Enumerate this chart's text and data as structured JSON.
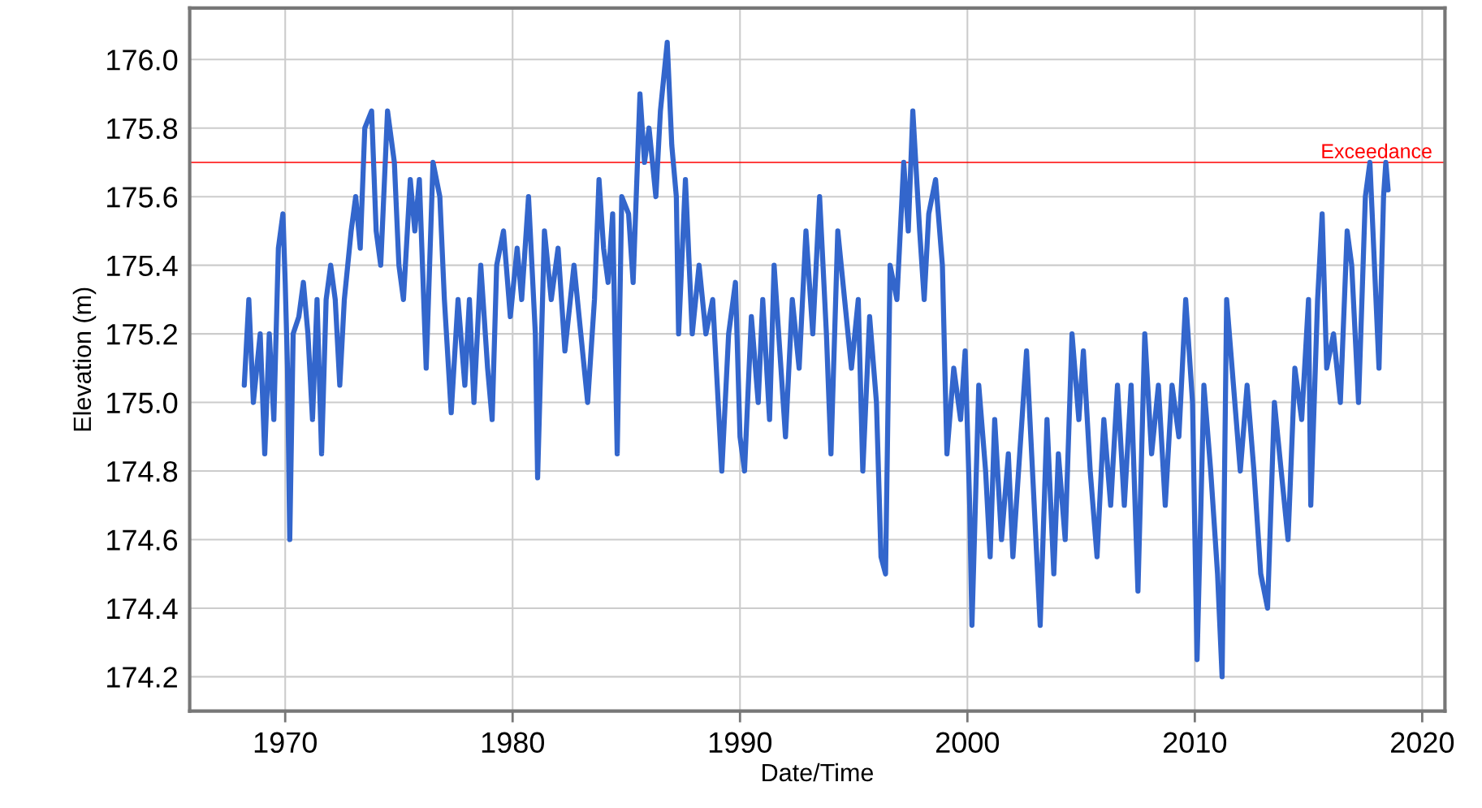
{
  "chart_data": {
    "type": "line",
    "xlabel": "Date/Time",
    "ylabel": "Elevation (m)",
    "xlim": [
      1965.8,
      2021.0
    ],
    "xticks": [
      1970,
      1980,
      1990,
      2000,
      2010,
      2020
    ],
    "ylim": [
      174.1,
      176.15
    ],
    "yticks": [
      {
        "value": 174.2,
        "label": "174.2"
      },
      {
        "value": 174.4,
        "label": "174.4"
      },
      {
        "value": 174.6,
        "label": "174.6"
      },
      {
        "value": 174.8,
        "label": "174.8"
      },
      {
        "value": 175.0,
        "label": "175.0"
      },
      {
        "value": 175.2,
        "label": "175.2"
      },
      {
        "value": 175.4,
        "label": "175.4"
      },
      {
        "value": 175.6,
        "label": "175.6"
      },
      {
        "value": 175.8,
        "label": "175.8"
      },
      {
        "value": 176.0,
        "label": "176.0"
      }
    ],
    "grid": true,
    "legend": false,
    "marker": "none",
    "line_style": "solid",
    "ref_lines": [
      {
        "axis": "y",
        "value": 175.7,
        "label": "Exceedance",
        "color": "#ff0000",
        "line_style": "solid"
      }
    ],
    "series": [
      {
        "color": "#3366cc",
        "x": [
          1968.2,
          1968.4,
          1968.6,
          1968.9,
          1969.1,
          1969.3,
          1969.5,
          1969.7,
          1969.9,
          1970.0,
          1970.1,
          1970.2,
          1970.35,
          1970.6,
          1970.8,
          1971.0,
          1971.2,
          1971.4,
          1971.6,
          1971.8,
          1972.0,
          1972.2,
          1972.4,
          1972.6,
          1972.9,
          1973.1,
          1973.3,
          1973.5,
          1973.8,
          1974.0,
          1974.2,
          1974.5,
          1974.8,
          1975.0,
          1975.2,
          1975.5,
          1975.7,
          1975.9,
          1976.2,
          1976.5,
          1976.8,
          1977.0,
          1977.3,
          1977.6,
          1977.9,
          1978.1,
          1978.3,
          1978.6,
          1978.9,
          1979.1,
          1979.3,
          1979.6,
          1979.9,
          1980.2,
          1980.4,
          1980.7,
          1981.0,
          1981.1,
          1981.4,
          1981.7,
          1982.0,
          1982.3,
          1982.7,
          1983.0,
          1983.3,
          1983.6,
          1983.8,
          1984.0,
          1984.2,
          1984.4,
          1984.6,
          1984.8,
          1985.1,
          1985.3,
          1985.6,
          1985.8,
          1986.0,
          1986.3,
          1986.5,
          1986.8,
          1987.0,
          1987.2,
          1987.3,
          1987.6,
          1987.9,
          1988.2,
          1988.5,
          1988.8,
          1989.0,
          1989.2,
          1989.5,
          1989.8,
          1990.0,
          1990.2,
          1990.5,
          1990.8,
          1991.0,
          1991.3,
          1991.5,
          1991.8,
          1992.0,
          1992.3,
          1992.6,
          1992.9,
          1993.2,
          1993.5,
          1993.8,
          1994.0,
          1994.3,
          1994.6,
          1994.9,
          1995.2,
          1995.4,
          1995.7,
          1996.0,
          1996.2,
          1996.4,
          1996.6,
          1996.9,
          1997.2,
          1997.4,
          1997.6,
          1997.9,
          1998.1,
          1998.3,
          1998.6,
          1998.9,
          1999.1,
          1999.4,
          1999.7,
          1999.9,
          2000.1,
          2000.2,
          2000.5,
          2000.8,
          2001.0,
          2001.2,
          2001.5,
          2001.8,
          2002.0,
          2002.3,
          2002.6,
          2002.9,
          2003.2,
          2003.5,
          2003.8,
          2004.0,
          2004.3,
          2004.6,
          2004.9,
          2005.1,
          2005.4,
          2005.7,
          2006.0,
          2006.3,
          2006.6,
          2006.9,
          2007.2,
          2007.5,
          2007.8,
          2008.1,
          2008.4,
          2008.7,
          2009.0,
          2009.3,
          2009.6,
          2009.9,
          2010.1,
          2010.4,
          2010.7,
          2011.0,
          2011.2,
          2011.4,
          2011.7,
          2012.0,
          2012.3,
          2012.6,
          2012.9,
          2013.2,
          2013.5,
          2013.8,
          2014.1,
          2014.4,
          2014.7,
          2015.0,
          2015.1,
          2015.4,
          2015.6,
          2015.8,
          2016.1,
          2016.4,
          2016.7,
          2016.9,
          2017.2,
          2017.5,
          2017.7,
          2017.9,
          2018.1,
          2018.3,
          2018.4,
          2018.5
        ],
        "values": [
          175.05,
          175.3,
          175.0,
          175.2,
          174.85,
          175.2,
          174.95,
          175.45,
          175.55,
          175.35,
          175.1,
          174.6,
          175.2,
          175.25,
          175.35,
          175.2,
          174.95,
          175.3,
          174.85,
          175.3,
          175.4,
          175.3,
          175.05,
          175.3,
          175.5,
          175.6,
          175.45,
          175.8,
          175.85,
          175.5,
          175.4,
          175.85,
          175.7,
          175.4,
          175.3,
          175.65,
          175.5,
          175.65,
          175.1,
          175.7,
          175.6,
          175.3,
          174.97,
          175.3,
          175.05,
          175.3,
          175.0,
          175.4,
          175.1,
          174.95,
          175.4,
          175.5,
          175.25,
          175.45,
          175.3,
          175.6,
          175.2,
          174.78,
          175.5,
          175.3,
          175.45,
          175.15,
          175.4,
          175.2,
          175.0,
          175.3,
          175.65,
          175.45,
          175.35,
          175.55,
          174.85,
          175.6,
          175.55,
          175.35,
          175.9,
          175.7,
          175.8,
          175.6,
          175.85,
          176.05,
          175.75,
          175.6,
          175.2,
          175.65,
          175.2,
          175.4,
          175.2,
          175.3,
          175.05,
          174.8,
          175.2,
          175.35,
          174.9,
          174.8,
          175.25,
          175.0,
          175.3,
          174.95,
          175.4,
          175.1,
          174.9,
          175.3,
          175.1,
          175.5,
          175.2,
          175.6,
          175.2,
          174.85,
          175.5,
          175.3,
          175.1,
          175.3,
          174.8,
          175.25,
          175.0,
          174.55,
          174.5,
          175.4,
          175.3,
          175.7,
          175.5,
          175.85,
          175.5,
          175.3,
          175.55,
          175.65,
          175.4,
          174.85,
          175.1,
          174.95,
          175.15,
          174.7,
          174.35,
          175.05,
          174.8,
          174.55,
          174.95,
          174.6,
          174.85,
          174.55,
          174.85,
          175.15,
          174.75,
          174.35,
          174.95,
          174.5,
          174.85,
          174.6,
          175.2,
          174.95,
          175.15,
          174.8,
          174.55,
          174.95,
          174.7,
          175.05,
          174.7,
          175.05,
          174.45,
          175.2,
          174.85,
          175.05,
          174.7,
          175.05,
          174.9,
          175.3,
          175.0,
          174.25,
          175.05,
          174.8,
          174.5,
          174.2,
          175.3,
          175.05,
          174.8,
          175.05,
          174.8,
          174.5,
          174.4,
          175.0,
          174.8,
          174.6,
          175.1,
          174.95,
          175.3,
          174.7,
          175.3,
          175.55,
          175.1,
          175.2,
          175.0,
          175.5,
          175.4,
          175.0,
          175.6,
          175.7,
          175.4,
          175.1,
          175.6,
          175.7,
          175.62
        ]
      }
    ]
  }
}
